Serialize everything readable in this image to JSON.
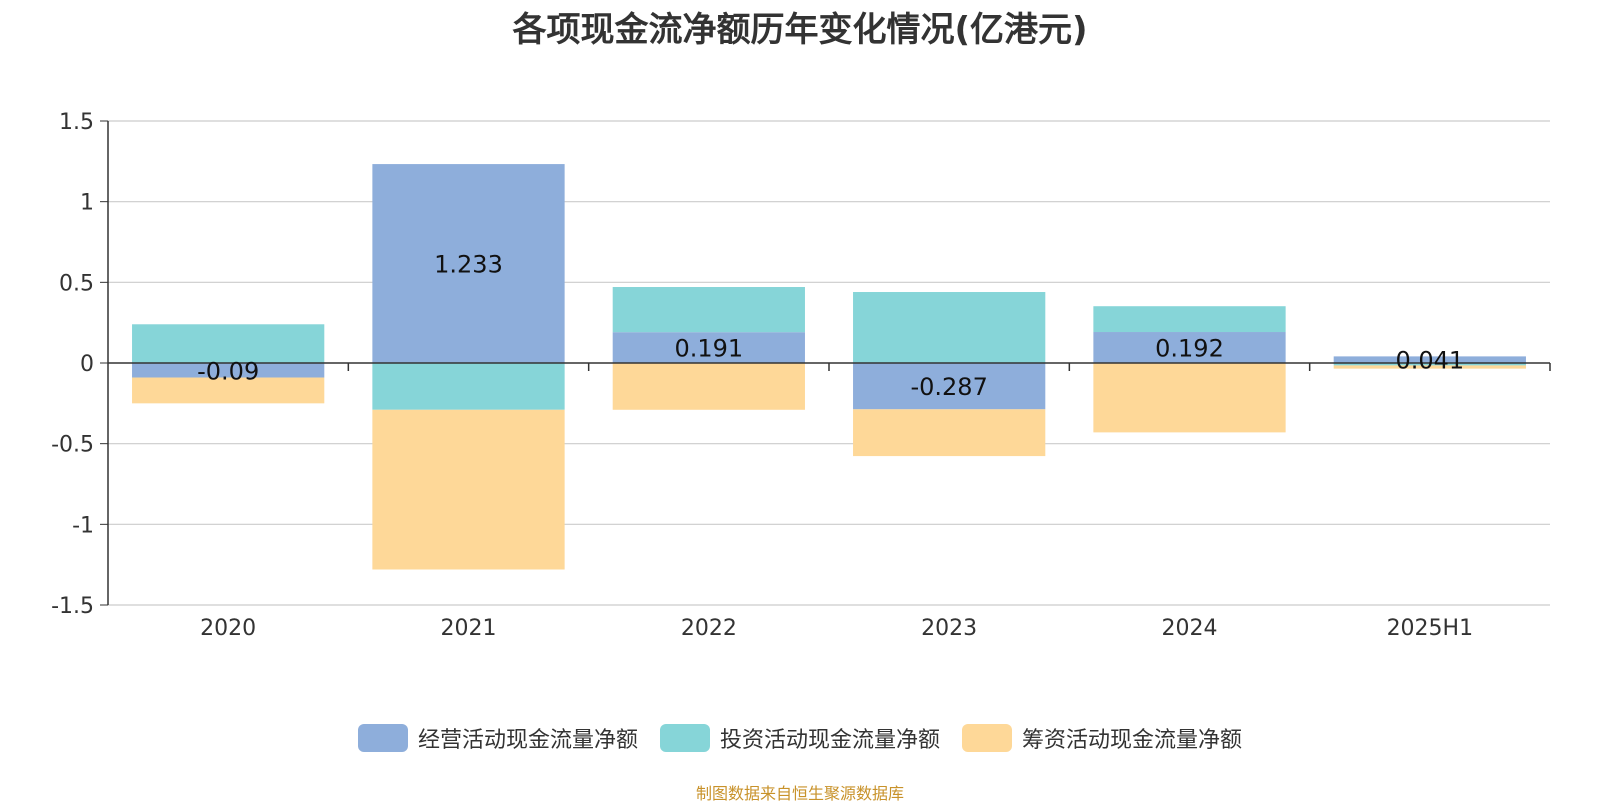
{
  "chart_data": {
    "type": "bar",
    "stacked": true,
    "title": "各项现金流净额历年变化情况(亿港元)",
    "categories": [
      "2020",
      "2021",
      "2022",
      "2023",
      "2024",
      "2025H1"
    ],
    "series": [
      {
        "name": "经营活动现金流量净额",
        "color": "#8eaedb",
        "values": [
          -0.09,
          1.233,
          0.191,
          -0.287,
          0.192,
          0.041
        ],
        "labels": [
          "-0.09",
          "1.233",
          "0.191",
          "-0.287",
          "0.192",
          "0.041"
        ]
      },
      {
        "name": "投资活动现金流量净额",
        "color": "#86d5d8",
        "values": [
          0.24,
          -0.29,
          0.28,
          0.44,
          0.16,
          -0.015
        ]
      },
      {
        "name": "筹资活动现金流量净额",
        "color": "#fed898",
        "values": [
          -0.16,
          -0.99,
          -0.29,
          -0.29,
          -0.43,
          -0.02
        ]
      }
    ],
    "ylim": [
      -1.5,
      1.5
    ],
    "yticks": [
      1.5,
      1,
      0.5,
      0,
      -0.5,
      -1,
      -1.5
    ],
    "ytick_labels": [
      "1.5",
      "1",
      "0.5",
      "0",
      "-0.5",
      "-1",
      "-1.5"
    ],
    "grid": true,
    "legend_position": "bottom-center"
  },
  "source_note": "制图数据来自恒生聚源数据库",
  "colors": {
    "axis": "#333333",
    "grid": "#cccccc",
    "text": "#333333",
    "source": "#c8922a"
  }
}
